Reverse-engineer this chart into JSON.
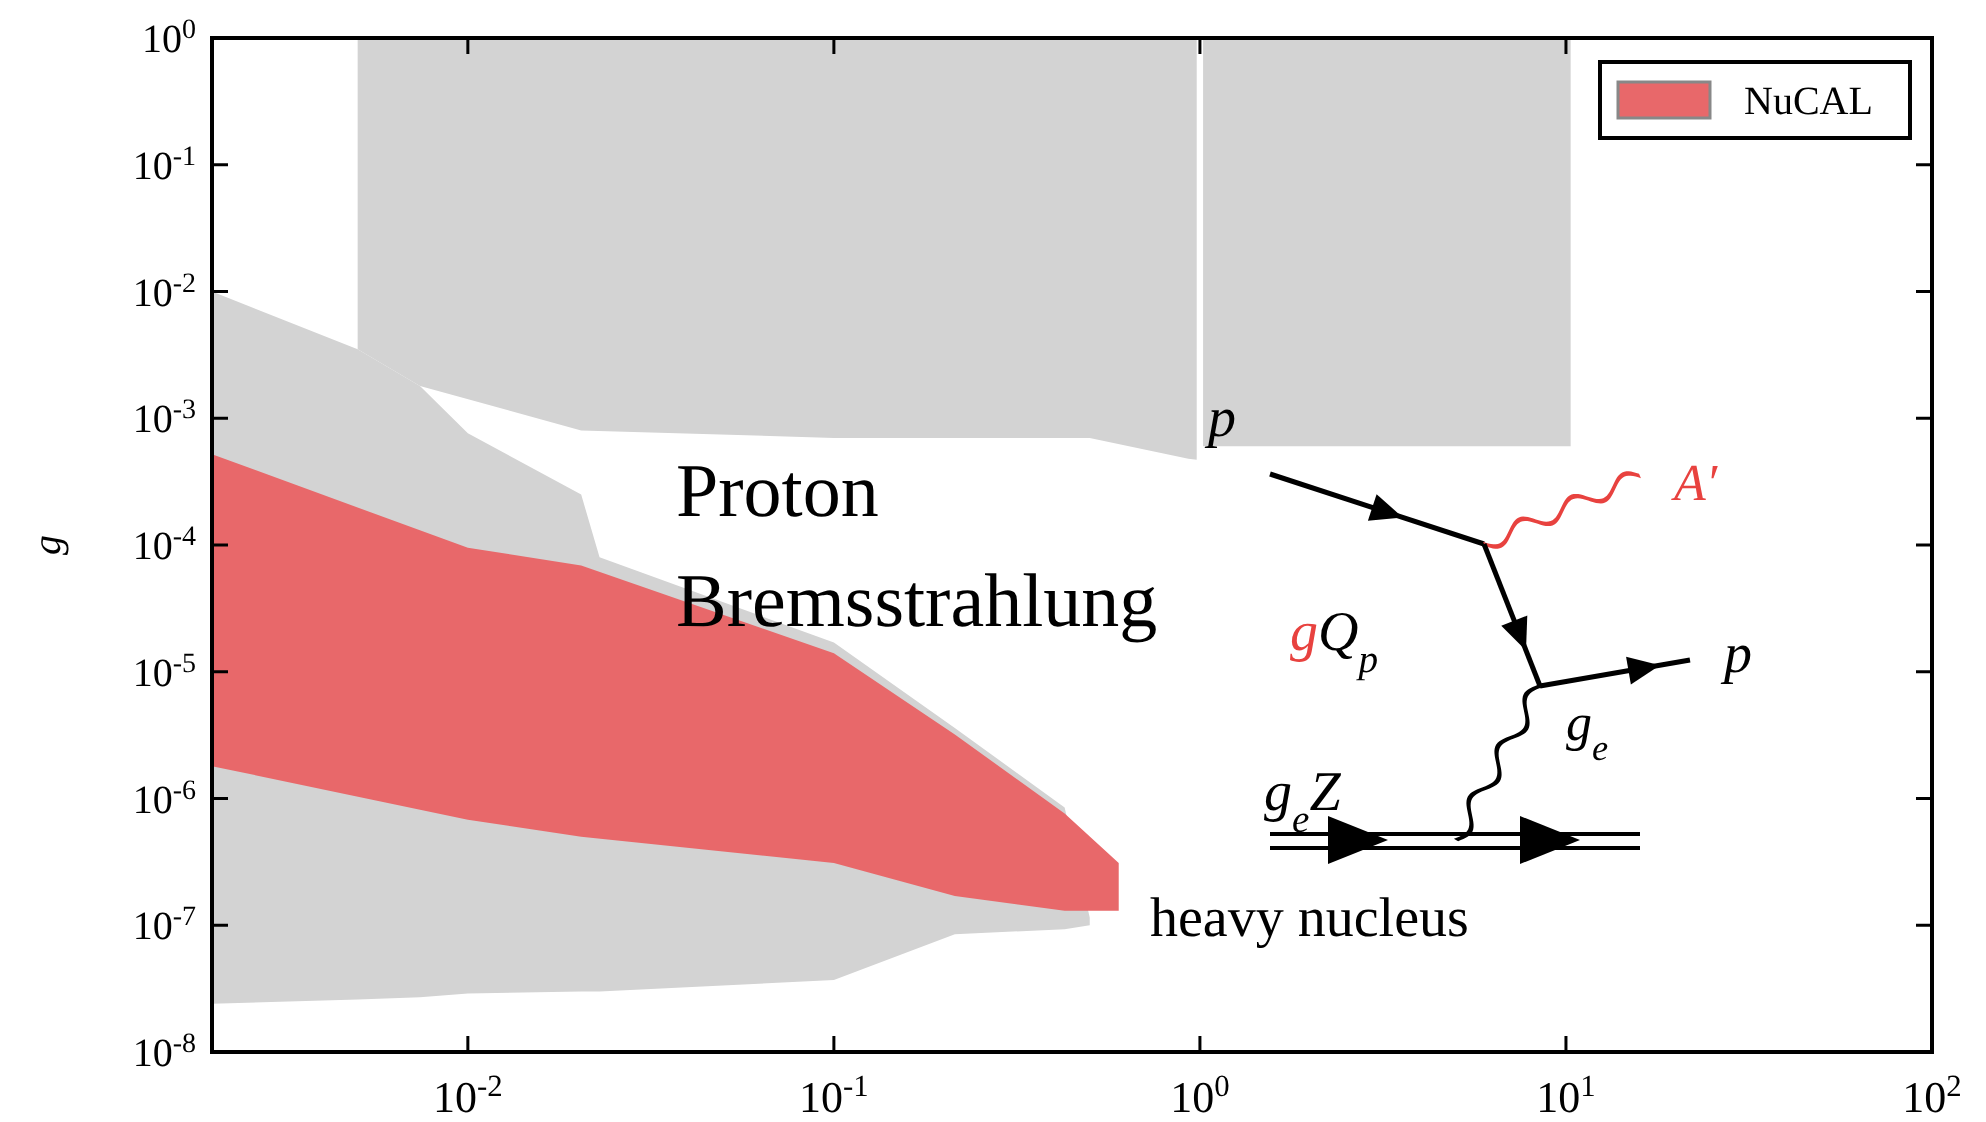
{
  "chart_data": {
    "type": "area",
    "ylabel": "g",
    "log": "xy",
    "xlim": [
      0.002,
      100
    ],
    "ylim": [
      1e-08,
      1
    ],
    "xticks": [
      {
        "value": 0.01,
        "label": "10$^{-2}$"
      },
      {
        "value": 0.1,
        "label": "10$^{-1}$"
      },
      {
        "value": 1,
        "label": "10$^{0}$"
      },
      {
        "value": 10,
        "label": "10$^{1}$"
      },
      {
        "value": 100,
        "label": "10$^{2}$"
      }
    ],
    "yticks": [
      {
        "value": 1e-08,
        "label": "10$^{-8}$"
      },
      {
        "value": 1e-07,
        "label": "10$^{-7}$"
      },
      {
        "value": 1e-06,
        "label": "10$^{-6}$"
      },
      {
        "value": 1e-05,
        "label": "10$^{-5}$"
      },
      {
        "value": 0.0001,
        "label": "10$^{-4}$"
      },
      {
        "value": 0.001,
        "label": "10$^{-3}$"
      },
      {
        "value": 0.01,
        "label": "10$^{-2}$"
      },
      {
        "value": 0.1,
        "label": "10$^{-1}$"
      },
      {
        "value": 1,
        "label": "10$^{0}$"
      }
    ],
    "series": [
      {
        "color": "#d3d3d3",
        "x": [
          0.005,
          0.0074,
          0.0204,
          0.1,
          0.5,
          0.93,
          0.98,
          0.98,
          0.005
        ],
        "values": [
          0.0035,
          0.0018,
          0.0008,
          0.0007,
          0.0007,
          0.00048,
          0.00047,
          1,
          1
        ]
      },
      {
        "color": "#d3d3d3",
        "x": [
          1.02,
          3.0,
          10.3,
          10.3,
          1.02
        ],
        "values": [
          0.0006,
          0.0006,
          0.0006,
          1,
          1
        ]
      },
      {
        "color": "#d3d3d3",
        "x": [
          0.002,
          0.005,
          0.0074,
          0.01,
          0.0204,
          0.0229,
          0.1,
          0.214,
          0.427,
          0.5,
          0.5,
          0.427,
          0.214,
          0.1,
          0.0229,
          0.0204,
          0.01,
          0.0074,
          0.005,
          0.002
        ],
        "values": [
          0.01,
          0.0035,
          0.0018,
          0.00076,
          0.00025,
          8e-05,
          1.7e-05,
          3.6e-06,
          8.5e-07,
          1.15e-07,
          1e-07,
          9.3e-08,
          8.5e-08,
          3.7e-08,
          3e-08,
          3e-08,
          2.9e-08,
          2.7e-08,
          2.6e-08,
          2.4e-08
        ]
      },
      {
        "name": "NuCAL",
        "color": "#e8686a",
        "x": [
          0.002,
          0.01,
          0.0204,
          0.1,
          0.214,
          0.427,
          0.6,
          0.6,
          0.427,
          0.214,
          0.1,
          0.0204,
          0.01,
          0.002
        ],
        "values": [
          0.00052,
          9.5e-05,
          6.9e-05,
          1.4e-05,
          3.2e-06,
          7.6e-07,
          3.1e-07,
          1.3e-07,
          1.3e-07,
          1.7e-07,
          3.1e-07,
          5e-07,
          6.8e-07,
          1.8e-06
        ]
      }
    ],
    "legend": "top right",
    "annotations": [
      "Proton",
      "Bremsstrahlung",
      "heavy nucleus",
      "p",
      "A′",
      "gQ$_{p}$",
      "p",
      "g$_{e}$",
      "g$_{e}$Z"
    ]
  }
}
